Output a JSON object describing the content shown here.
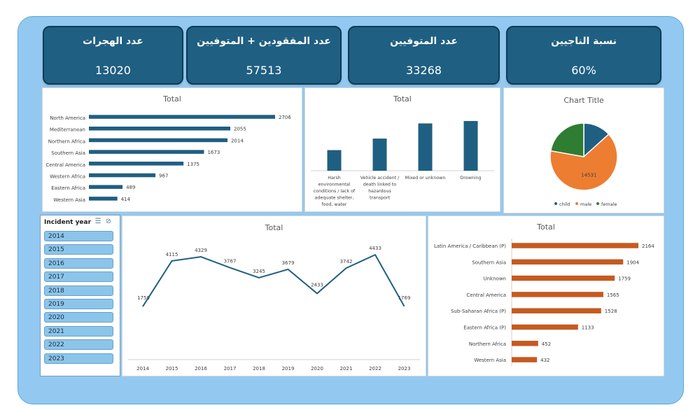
{
  "kpis": [
    {
      "title": "عدد الهجرات",
      "value": "13020"
    },
    {
      "title": "عدد المفقودين +  المتوفيين",
      "value": "57513"
    },
    {
      "title": "عدد المتوفيين",
      "value": "33268"
    },
    {
      "title": "نسبة الناجيين",
      "value": "60%"
    }
  ],
  "slicer": {
    "title": "Incident year",
    "items": [
      "2014",
      "2015",
      "2016",
      "2017",
      "2018",
      "2019",
      "2020",
      "2021",
      "2022",
      "2023"
    ]
  },
  "colors": {
    "navy": "#1f5f82",
    "orange": "#c55a20",
    "pie_child": "#1f5f82",
    "pie_male": "#ed7d31",
    "pie_female": "#2e7d32"
  },
  "chart_data": [
    {
      "type": "bar",
      "orientation": "horizontal",
      "title": "Total",
      "categories": [
        "North America",
        "Mediterranean",
        "Northern Africa",
        "Southern Asia",
        "Central America",
        "Western Africa",
        "Eastern Africa",
        "Western Asia"
      ],
      "values": [
        2706,
        2055,
        2014,
        1673,
        1375,
        967,
        489,
        414
      ],
      "xlim": [
        0,
        2706
      ]
    },
    {
      "type": "bar",
      "title": "Total",
      "categories": [
        "Harsh environmental conditions / lack of adequate shelter, food, water",
        "Vehicle accident / death linked to hazardous transport",
        "Mixed or unknown",
        "Drowning"
      ],
      "values": [
        3400,
        5300,
        7800,
        8200
      ],
      "ylim": [
        0,
        9000
      ]
    },
    {
      "type": "pie",
      "title": "Chart Title",
      "labels": [
        "child",
        "male",
        "female"
      ],
      "values": [
        3000,
        14531,
        5000
      ],
      "data_labels": [
        "",
        "14531",
        ""
      ],
      "legend": "bottom"
    },
    {
      "type": "line",
      "title": "Total",
      "x": [
        "2014",
        "2015",
        "2016",
        "2017",
        "2018",
        "2019",
        "2020",
        "2021",
        "2022",
        "2023"
      ],
      "values": [
        1759,
        4115,
        4329,
        3767,
        3245,
        3679,
        2433,
        3742,
        4433,
        1769
      ],
      "ylim": [
        1000,
        4800
      ]
    },
    {
      "type": "bar",
      "orientation": "horizontal",
      "title": "Total",
      "categories": [
        "Latin America / Caribbean (P)",
        "Southern Asia",
        "Unknown",
        "Central America",
        "Sub-Saharan Africa (P)",
        "Eastern Africa (P)",
        "Northern Africa",
        "Western Asia"
      ],
      "values": [
        2164,
        1904,
        1759,
        1565,
        1528,
        1133,
        452,
        432
      ],
      "xlim": [
        0,
        2164
      ]
    }
  ]
}
